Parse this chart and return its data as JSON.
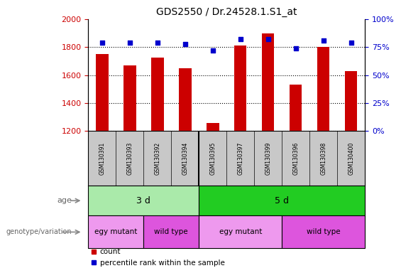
{
  "title": "GDS2550 / Dr.24528.1.S1_at",
  "samples": [
    "GSM130391",
    "GSM130393",
    "GSM130392",
    "GSM130394",
    "GSM130395",
    "GSM130397",
    "GSM130399",
    "GSM130396",
    "GSM130398",
    "GSM130400"
  ],
  "counts": [
    1750,
    1670,
    1725,
    1648,
    1255,
    1810,
    1900,
    1530,
    1800,
    1630
  ],
  "percentile_ranks": [
    79,
    79,
    79,
    78,
    72,
    82,
    82,
    74,
    81,
    79
  ],
  "ylim_left": [
    1200,
    2000
  ],
  "ylim_right": [
    0,
    100
  ],
  "yticks_left": [
    1200,
    1400,
    1600,
    1800,
    2000
  ],
  "yticks_right": [
    0,
    25,
    50,
    75,
    100
  ],
  "bar_color": "#CC0000",
  "dot_color": "#0000CC",
  "age_groups": [
    {
      "label": "3 d",
      "start": 0,
      "end": 4,
      "color": "#AAEAAA"
    },
    {
      "label": "5 d",
      "start": 4,
      "end": 10,
      "color": "#22CC22"
    }
  ],
  "genotype_groups": [
    {
      "label": "egy mutant",
      "start": 0,
      "end": 2,
      "color": "#EE99EE"
    },
    {
      "label": "wild type",
      "start": 2,
      "end": 4,
      "color": "#DD55DD"
    },
    {
      "label": "egy mutant",
      "start": 4,
      "end": 7,
      "color": "#EE99EE"
    },
    {
      "label": "wild type",
      "start": 7,
      "end": 10,
      "color": "#DD55DD"
    }
  ],
  "age_label": "age",
  "genotype_label": "genotype/variation",
  "legend_count": "count",
  "legend_percentile": "percentile rank within the sample",
  "grid_color": "black",
  "tick_label_color_left": "#CC0000",
  "tick_label_color_right": "#0000CC",
  "background_sample": "#C8C8C8",
  "bar_width": 0.45,
  "figsize": [
    5.65,
    3.84
  ],
  "dpi": 100
}
